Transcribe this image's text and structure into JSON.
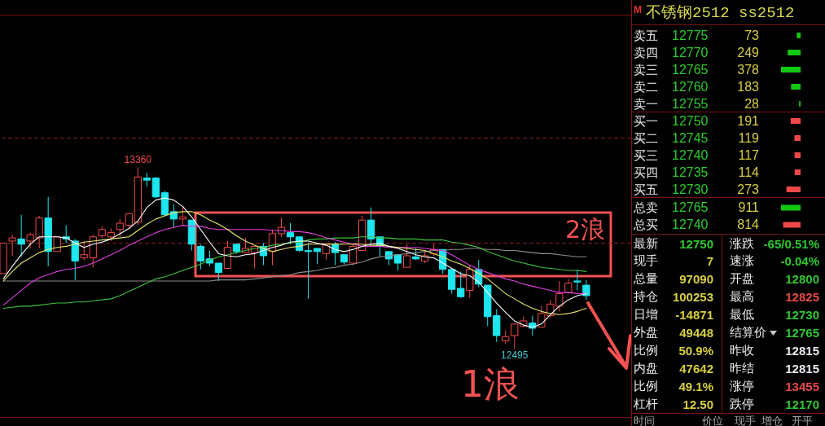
{
  "chart_data": [
    {
      "type": "candlestick",
      "categories": [
        null,
        null,
        null,
        null,
        null,
        null,
        null,
        null,
        null,
        null,
        null,
        null,
        null,
        null,
        null,
        null,
        null,
        null,
        null,
        null,
        null,
        null,
        null,
        null,
        null,
        null,
        null,
        null,
        null,
        null,
        null,
        null,
        null,
        null,
        null,
        null,
        null,
        null,
        null,
        null,
        null,
        null,
        null,
        null,
        null,
        null,
        null,
        null,
        null,
        null,
        null,
        null,
        null,
        null,
        null,
        null,
        null,
        null,
        null,
        null,
        null,
        null,
        null,
        null,
        null,
        null
      ],
      "ohlc": [
        [
          12855,
          13000,
          12855,
          13000
        ],
        [
          13010,
          13040,
          12940,
          13025
        ],
        [
          13020,
          13135,
          12935,
          12995
        ],
        [
          13010,
          13050,
          12975,
          13040
        ],
        [
          13025,
          13130,
          12975,
          13120
        ],
        [
          13120,
          13220,
          12890,
          12960
        ],
        [
          12960,
          13030,
          12960,
          13030
        ],
        [
          13030,
          13085,
          13000,
          13020
        ],
        [
          13010,
          13020,
          12825,
          12915
        ],
        [
          12930,
          13010,
          12920,
          12945
        ],
        [
          12930,
          13040,
          12885,
          13030
        ],
        [
          13035,
          13080,
          13025,
          13065
        ],
        [
          13030,
          13070,
          13010,
          13050
        ],
        [
          13065,
          13115,
          13030,
          13095
        ],
        [
          13085,
          13140,
          13075,
          13140
        ],
        [
          13100,
          13360,
          13085,
          13315
        ],
        [
          13310,
          13335,
          13270,
          13300
        ],
        [
          13310,
          13315,
          13215,
          13220
        ],
        [
          13240,
          13250,
          13130,
          13135
        ],
        [
          13150,
          13185,
          13075,
          13115
        ],
        [
          13115,
          13175,
          13085,
          13125
        ],
        [
          13110,
          13110,
          12965,
          12995
        ],
        [
          12985,
          12995,
          12875,
          12915
        ],
        [
          12925,
          12965,
          12890,
          12905
        ],
        [
          12905,
          12905,
          12820,
          12860
        ],
        [
          12880,
          13010,
          12880,
          12980
        ],
        [
          12995,
          12995,
          12950,
          12960
        ],
        [
          12955,
          13025,
          12955,
          12975
        ],
        [
          12955,
          12985,
          12880,
          12985
        ],
        [
          12985,
          13000,
          12895,
          12940
        ],
        [
          12960,
          13065,
          12895,
          13045
        ],
        [
          13045,
          13120,
          13030,
          13075
        ],
        [
          13050,
          13095,
          12995,
          13030
        ],
        [
          13030,
          13030,
          12960,
          12965
        ],
        [
          12965,
          13000,
          12735,
          12960
        ],
        [
          12975,
          12975,
          12900,
          12960
        ],
        [
          12950,
          13000,
          12920,
          12995
        ],
        [
          12995,
          13005,
          12895,
          12955
        ],
        [
          12945,
          12945,
          12900,
          12910
        ],
        [
          12905,
          12995,
          12895,
          12985
        ],
        [
          12965,
          13130,
          12965,
          13110
        ],
        [
          13110,
          13170,
          12995,
          13020
        ],
        [
          13030,
          13030,
          12935,
          12985
        ],
        [
          12960,
          12960,
          12895,
          12925
        ],
        [
          12945,
          12945,
          12870,
          12905
        ],
        [
          12885,
          12995,
          12885,
          12940
        ],
        [
          12935,
          12975,
          12920,
          12925
        ],
        [
          12915,
          12960,
          12905,
          12940
        ],
        [
          12950,
          12995,
          12940,
          12970
        ],
        [
          12970,
          12970,
          12855,
          12875
        ],
        [
          12875,
          12875,
          12760,
          12780
        ],
        [
          12785,
          12865,
          12740,
          12745
        ],
        [
          12775,
          12895,
          12740,
          12875
        ],
        [
          12875,
          12920,
          12790,
          12805
        ],
        [
          12800,
          12800,
          12605,
          12650
        ],
        [
          12655,
          12685,
          12530,
          12560
        ],
        [
          12535,
          12585,
          12520,
          12555
        ],
        [
          12560,
          12615,
          12495,
          12615
        ],
        [
          12605,
          12650,
          12600,
          12630
        ],
        [
          12620,
          12655,
          12560,
          12595
        ],
        [
          12600,
          12700,
          12600,
          12665
        ],
        [
          12655,
          12730,
          12645,
          12710
        ],
        [
          12700,
          12820,
          12675,
          12760
        ],
        [
          12765,
          12830,
          12760,
          12810
        ],
        [
          12820,
          12875,
          12775,
          12815
        ],
        [
          12800,
          12825,
          12730,
          12750
        ]
      ],
      "series": [
        {
          "type": "line",
          "color": "#8c8c8c",
          "values": [
            12820,
            12820,
            12820,
            12820,
            12820,
            12820,
            12820,
            12820,
            12820,
            12820,
            12820,
            12820,
            12820,
            12820,
            12820,
            12820,
            12820,
            12820,
            12820,
            12820,
            12820,
            12820,
            12820,
            12820,
            12825,
            12825,
            12825,
            12825,
            12830,
            12835,
            12840,
            12845,
            12850,
            12860,
            12865,
            12870,
            12880,
            12885,
            12895,
            12900,
            12910,
            12925,
            12935,
            12940,
            12945,
            12950,
            12955,
            12960,
            12965,
            12965,
            12970,
            12970,
            12975,
            12975,
            12970,
            12970,
            12965,
            12965,
            12960,
            12955,
            12950,
            12950,
            12945,
            12940,
            12935,
            12935
          ]
        },
        {
          "type": "line",
          "color": "#3cc43c",
          "values": [
            12690,
            12695,
            12700,
            12700,
            12705,
            12710,
            12715,
            12715,
            12720,
            12720,
            12725,
            12730,
            12735,
            12750,
            12770,
            12790,
            12810,
            12830,
            12840,
            12855,
            12870,
            12885,
            12900,
            12920,
            12935,
            12945,
            12955,
            12965,
            12975,
            12980,
            12990,
            12995,
            13000,
            13005,
            13015,
            13020,
            13020,
            13025,
            13025,
            13025,
            13030,
            13030,
            13025,
            13025,
            13020,
            13020,
            13020,
            13015,
            13015,
            13015,
            13005,
            13000,
            12990,
            12980,
            12960,
            12945,
            12930,
            12915,
            12905,
            12895,
            12885,
            12880,
            12875,
            12870,
            12870,
            12865
          ]
        },
        {
          "type": "line",
          "color": "#e040e0",
          "values": [
            12705,
            12740,
            12775,
            12810,
            12835,
            12850,
            12865,
            12875,
            12880,
            12890,
            12905,
            12925,
            12945,
            12965,
            12990,
            13010,
            13030,
            13050,
            13065,
            13075,
            13085,
            13080,
            13080,
            13070,
            13065,
            13065,
            13065,
            13065,
            13065,
            13065,
            13060,
            13060,
            13055,
            13055,
            13050,
            13040,
            13025,
            13015,
            13005,
            12995,
            12985,
            12985,
            12985,
            12980,
            12980,
            12980,
            12980,
            12975,
            12970,
            12965,
            12945,
            12920,
            12895,
            12875,
            12860,
            12845,
            12830,
            12820,
            12805,
            12795,
            12785,
            12775,
            12765,
            12765,
            12760,
            12760
          ]
        },
        {
          "type": "line",
          "color": "#e8e86a",
          "values": [
            12820,
            12865,
            12905,
            12930,
            12955,
            12970,
            12980,
            12985,
            12995,
            13005,
            13010,
            13015,
            13020,
            13025,
            13030,
            13060,
            13090,
            13115,
            13130,
            13145,
            13150,
            13150,
            13135,
            13110,
            13090,
            13065,
            13035,
            13010,
            12990,
            12975,
            12960,
            12970,
            12980,
            12985,
            12995,
            12995,
            12995,
            12995,
            12995,
            12995,
            12995,
            12990,
            12990,
            12985,
            12980,
            12975,
            12970,
            12965,
            12950,
            12935,
            12915,
            12900,
            12880,
            12855,
            12830,
            12795,
            12760,
            12735,
            12710,
            12690,
            12675,
            12665,
            12660,
            12665,
            12675,
            12690
          ]
        },
        {
          "type": "line",
          "color": "#ffffff",
          "values": [
            12830,
            12890,
            12945,
            12995,
            13030,
            13030,
            13030,
            13025,
            13000,
            12980,
            12995,
            13005,
            13020,
            13045,
            13070,
            13105,
            13170,
            13205,
            13215,
            13205,
            13175,
            13125,
            13065,
            13005,
            12950,
            12940,
            12935,
            12945,
            12950,
            12965,
            12980,
            12990,
            13005,
            13010,
            13010,
            13000,
            12990,
            12970,
            12960,
            12970,
            12985,
            12995,
            13000,
            12985,
            12975,
            12960,
            12945,
            12935,
            12930,
            12905,
            12880,
            12855,
            12845,
            12815,
            12765,
            12715,
            12670,
            12630,
            12610,
            12600,
            12615,
            12660,
            12700,
            12730,
            12750,
            12760
          ]
        }
      ],
      "ylim": [
        12180,
        14080
      ],
      "ref_lines": [
        {
          "axis": "y",
          "value": 13500,
          "color": "#8a2020",
          "line_style": "dashed"
        },
        {
          "axis": "y",
          "value": 13000,
          "color": "#8a2020",
          "line_style": "dashed"
        }
      ],
      "annotations": [
        {
          "text": "13360",
          "y": 13360
        },
        "2浪",
        {
          "text": "12495",
          "y": 12495
        },
        "1浪"
      ]
    },
    {
      "type": "bar",
      "orientation": "horizontal",
      "title": "不锈钢2512 ss2512",
      "categories": [
        "卖五",
        "卖四",
        "卖三",
        "卖二",
        "卖一",
        "买一",
        "买二",
        "买三",
        "买四",
        "买五"
      ],
      "values": [
        73,
        249,
        378,
        183,
        28,
        191,
        119,
        117,
        114,
        273
      ],
      "colors": [
        "#12c812",
        "#12c812",
        "#12c812",
        "#12c812",
        "#12c812",
        "#f04848",
        "#f04848",
        "#f04848",
        "#f04848",
        "#f04848"
      ],
      "data_labels": true,
      "annotations": [
        "M",
        "12775",
        "12770",
        "12765",
        "12760",
        "12755",
        "12750",
        "12745",
        "12740",
        "12735",
        "12730"
      ]
    },
    {
      "type": "bar",
      "orientation": "horizontal",
      "categories": [
        "总卖",
        "总买"
      ],
      "values": [
        911,
        814
      ],
      "colors": [
        "#12c812",
        "#f04848"
      ],
      "data_labels": true,
      "annotations": [
        "12765",
        "12740"
      ]
    },
    {
      "type": "other",
      "categories": [
        "最新",
        "涨跌",
        "现手",
        "速涨",
        "总量",
        "开盘",
        "持仓",
        "最高",
        "日增",
        "最低",
        "外盘",
        "结算价",
        "比例",
        "昨收",
        "内盘",
        "昨结",
        "比例",
        "涨停",
        "杠杆",
        "跌停"
      ],
      "value_labels": [
        "12750",
        "-65/0.51%",
        "7",
        "-0.04%",
        "97090",
        "12800",
        "100253",
        "12825",
        "-14871",
        "12730",
        "49448",
        "12765",
        "50.9%",
        "12815",
        "47642",
        "12815",
        "49.1%",
        "13455",
        "12.50",
        "12170"
      ],
      "colors": [
        "#2ec82e",
        "#2ec82e",
        "#d8d040",
        "#2ec82e",
        "#d8d040",
        "#2ec82e",
        "#d8d040",
        "#e84848",
        "#d8d040",
        "#2ec82e",
        "#d8d040",
        "#2ec82e",
        "#d8d040",
        "#e8e8f0",
        "#d8d040",
        "#e8e8f0",
        "#d8d040",
        "#e84848",
        "#d8d040",
        "#2ec82e"
      ],
      "annotations": [
        "时间",
        "价位",
        "现手",
        "增仓",
        "开平"
      ]
    }
  ]
}
